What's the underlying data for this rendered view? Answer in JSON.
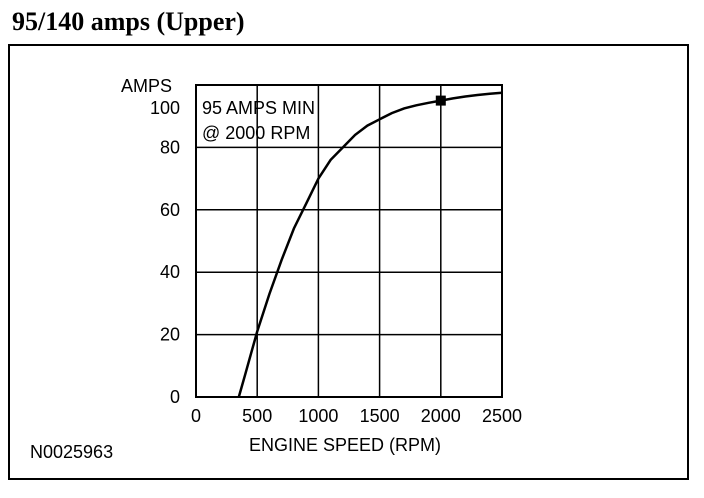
{
  "title": "95/140 amps (Upper)",
  "figure_id": "N0025963",
  "chart_data": {
    "type": "line",
    "ylabel": "AMPS",
    "xlabel": "ENGINE SPEED (RPM)",
    "xlim": [
      0,
      2500
    ],
    "ylim": [
      0,
      100
    ],
    "x_ticks": [
      "0",
      "500",
      "1000",
      "1500",
      "2000",
      "2500"
    ],
    "y_ticks": [
      "0",
      "20",
      "40",
      "60",
      "80",
      "100"
    ],
    "grid": true,
    "series": [
      {
        "x": [
          350,
          400,
          450,
          500,
          600,
          700,
          800,
          900,
          1000,
          1100,
          1200,
          1300,
          1400,
          1500,
          1600,
          1700,
          1800,
          1900,
          2000,
          2100,
          2200,
          2300,
          2400,
          2500
        ],
        "values": [
          0,
          7,
          14,
          21,
          33,
          44,
          54,
          62,
          70,
          76,
          80,
          84,
          87,
          89,
          91,
          92.5,
          93.5,
          94.3,
          95,
          95.7,
          96.3,
          96.8,
          97.2,
          97.5
        ]
      }
    ],
    "marker": {
      "x": 2000,
      "y": 95
    },
    "annotation": {
      "line1": "95 AMPS MIN",
      "line2": "@ 2000 RPM"
    }
  }
}
